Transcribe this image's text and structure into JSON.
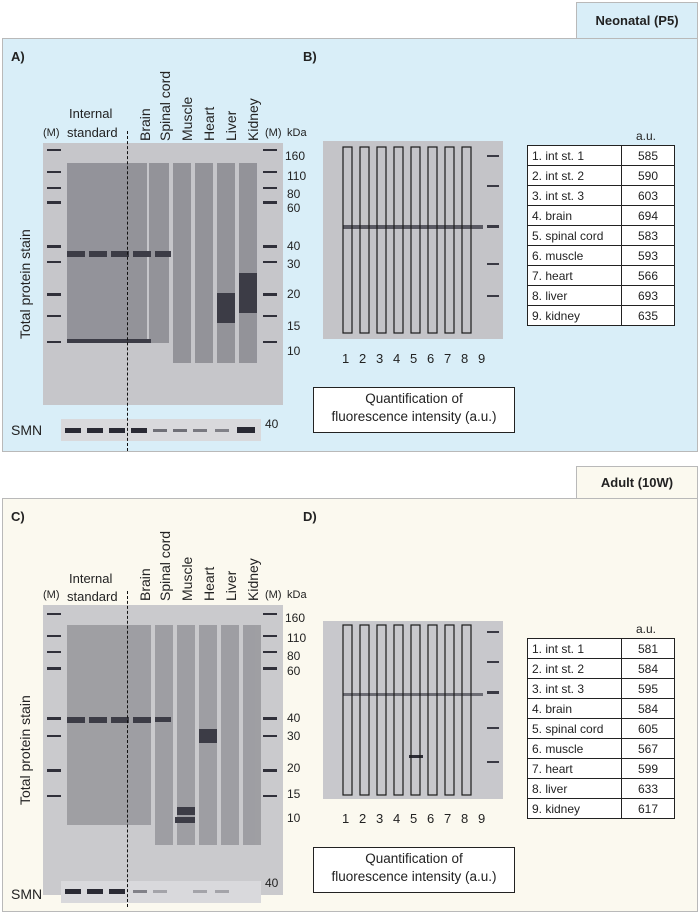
{
  "neonatal": {
    "tab": "Neonatal (P5)",
    "color_bg": "#d9eef8",
    "panel_a": {
      "label": "A)",
      "internal_standard": [
        "Internal",
        "standard"
      ],
      "marker": "(M)",
      "kda": "kDa",
      "tissues": [
        "Brain",
        "Spinal cord",
        "Muscle",
        "Heart",
        "Liver",
        "Kidney"
      ],
      "marker_ticks": [
        "160",
        "110",
        "80",
        "60",
        "40",
        "30",
        "20",
        "15",
        "10"
      ],
      "y_label": "Total protein stain",
      "smn_label": "SMN",
      "smn_tick": "40"
    },
    "panel_b": {
      "label": "B)",
      "lanes": [
        "1",
        "2",
        "3",
        "4",
        "5",
        "6",
        "7",
        "8",
        "9"
      ],
      "quant": [
        "Quantification of",
        "fluorescence intensity (a.u.)"
      ],
      "au_header": "a.u.",
      "rows": [
        {
          "name": "1. int st. 1",
          "value": "585"
        },
        {
          "name": "2. int st. 2",
          "value": "590"
        },
        {
          "name": "3. int st. 3",
          "value": "603"
        },
        {
          "name": "4. brain",
          "value": "694"
        },
        {
          "name": "5. spinal cord",
          "value": "583"
        },
        {
          "name": "6. muscle",
          "value": "593"
        },
        {
          "name": "7. heart",
          "value": "566"
        },
        {
          "name": "8. liver",
          "value": "693"
        },
        {
          "name": "9. kidney",
          "value": "635"
        }
      ]
    }
  },
  "adult": {
    "tab": "Adult (10W)",
    "color_bg": "#fbf9ef",
    "panel_c": {
      "label": "C)",
      "internal_standard": [
        "Internal",
        "standard"
      ],
      "marker": "(M)",
      "kda": "kDa",
      "tissues": [
        "Brain",
        "Spinal cord",
        "Muscle",
        "Heart",
        "Liver",
        "Kidney"
      ],
      "marker_ticks": [
        "160",
        "110",
        "80",
        "60",
        "40",
        "30",
        "20",
        "15",
        "10"
      ],
      "y_label": "Total protein stain",
      "smn_label": "SMN",
      "smn_tick": "40"
    },
    "panel_d": {
      "label": "D)",
      "lanes": [
        "1",
        "2",
        "3",
        "4",
        "5",
        "6",
        "7",
        "8",
        "9"
      ],
      "quant": [
        "Quantification of",
        "fluorescence intensity (a.u.)"
      ],
      "au_header": "a.u.",
      "rows": [
        {
          "name": "1. int st. 1",
          "value": "581"
        },
        {
          "name": "2. int st. 2",
          "value": "584"
        },
        {
          "name": "3. int st. 3",
          "value": "595"
        },
        {
          "name": "4. brain",
          "value": "584"
        },
        {
          "name": "5. spinal cord",
          "value": "605"
        },
        {
          "name": "6. muscle",
          "value": "567"
        },
        {
          "name": "7. heart",
          "value": "599"
        },
        {
          "name": "8. liver",
          "value": "633"
        },
        {
          "name": "9. kidney",
          "value": "617"
        }
      ]
    }
  }
}
